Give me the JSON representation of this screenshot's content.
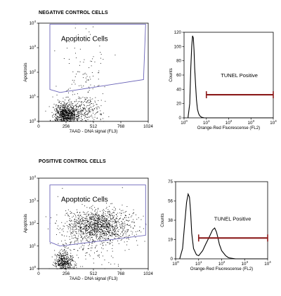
{
  "sections": [
    {
      "title": "NEGATIVE CONTROL CELLS"
    },
    {
      "title": "POSITIVE CONTROL CELLS"
    }
  ],
  "colors": {
    "gate": "#6a63b8",
    "marker": "#8b1a1a",
    "ink": "#000000"
  },
  "chart_data": [
    {
      "type": "scatter",
      "panel": "negative-dotplot",
      "gate_label": "Apoptotic Cells",
      "xlabel": "7AAD - DNA signal (FL3)",
      "ylabel": "Apoptosis",
      "xlim": [
        0,
        1024
      ],
      "ylim": [
        1,
        10000
      ],
      "yscale": "log",
      "xticks": [
        "0",
        "256",
        "512",
        "768",
        "1024"
      ],
      "yticks": [
        "10^0",
        "10^1",
        "10^2",
        "10^3",
        "10^4"
      ],
      "gate_polygon": [
        [
          105,
          9000
        ],
        [
          1000,
          9000
        ],
        [
          980,
          50
        ],
        [
          200,
          15
        ],
        [
          105,
          20
        ]
      ],
      "populations": [
        {
          "name": "main",
          "x_center": 250,
          "y_center": 1.8,
          "x_spread": 120,
          "y_spread": 0.25,
          "n": 900
        },
        {
          "name": "tail",
          "x_center": 420,
          "y_center": 2.5,
          "x_spread": 200,
          "y_spread": 0.3,
          "n": 260
        },
        {
          "name": "apoptotic",
          "x_center": 400,
          "y_center": 40,
          "x_spread": 260,
          "y_spread": 1.0,
          "n": 150
        }
      ]
    },
    {
      "type": "line",
      "panel": "negative-histogram",
      "xlabel": "Orange-Red Fluorescense (FL2)",
      "ylabel": "Counts",
      "xscale": "log",
      "xlim": [
        1,
        10000
      ],
      "ylim": [
        0,
        120
      ],
      "xticks": [
        "10^0",
        "10^1",
        "10^2",
        "10^3",
        "10^4"
      ],
      "yticks": [
        "0",
        "20",
        "40",
        "60",
        "80",
        "100",
        "120"
      ],
      "marker_label": "TUNEL Positive",
      "marker_range": [
        10,
        10000
      ],
      "series": [
        {
          "x": [
            1.5,
            1.8,
            2.0,
            2.2,
            2.4,
            2.6,
            2.8,
            3.0,
            3.3,
            3.6,
            4.0,
            4.5,
            5,
            6,
            8,
            10,
            20,
            50,
            100,
            1000,
            10000
          ],
          "values": [
            0,
            20,
            70,
            100,
            115,
            112,
            95,
            70,
            45,
            25,
            12,
            6,
            3,
            1,
            0,
            0,
            0,
            0,
            0,
            0,
            0
          ]
        }
      ]
    },
    {
      "type": "scatter",
      "panel": "positive-dotplot",
      "gate_label": "Apoptotic Cells",
      "xlabel": "7AAD - DNA signal (FL3)",
      "ylabel": "Apoptosis",
      "xlim": [
        0,
        1024
      ],
      "ylim": [
        1,
        10000
      ],
      "yscale": "log",
      "xticks": [
        "0",
        "256",
        "512",
        "768",
        "1024"
      ],
      "yticks": [
        "10^0",
        "10^1",
        "10^2",
        "10^3",
        "10^4"
      ],
      "gate_polygon": [
        [
          105,
          5000
        ],
        [
          1000,
          5000
        ],
        [
          1000,
          30
        ],
        [
          200,
          10
        ],
        [
          105,
          15
        ]
      ],
      "populations": [
        {
          "name": "lower",
          "x_center": 230,
          "y_center": 1.8,
          "x_spread": 100,
          "y_spread": 0.25,
          "n": 500
        },
        {
          "name": "apoptotic-band",
          "x_center": 560,
          "y_center": 80,
          "x_spread": 360,
          "y_spread": 0.35,
          "n": 1200
        },
        {
          "name": "scatter",
          "x_center": 500,
          "y_center": 15,
          "x_spread": 300,
          "y_spread": 0.9,
          "n": 200
        }
      ]
    },
    {
      "type": "line",
      "panel": "positive-histogram",
      "xlabel": "Orange-Red Fluorescense (FL2)",
      "ylabel": "Counts",
      "xscale": "log",
      "xlim": [
        1,
        10000
      ],
      "ylim": [
        0,
        75
      ],
      "xticks": [
        "10^0",
        "10^1",
        "10^2",
        "10^3",
        "10^4"
      ],
      "yticks": [
        "0",
        "19",
        "38",
        "56",
        "75"
      ],
      "marker_label": "TUNEL Positive",
      "marker_range": [
        10,
        10000
      ],
      "series": [
        {
          "x": [
            1.5,
            2.0,
            2.5,
            3.0,
            3.5,
            4.0,
            4.5,
            5,
            6,
            8,
            10,
            15,
            20,
            30,
            40,
            50,
            60,
            70,
            80,
            100,
            150,
            200,
            400,
            1000,
            10000
          ],
          "values": [
            0,
            10,
            35,
            55,
            63,
            60,
            45,
            25,
            10,
            4,
            3,
            8,
            14,
            22,
            28,
            30,
            26,
            20,
            14,
            8,
            3,
            1,
            0,
            0,
            0
          ]
        }
      ]
    }
  ]
}
